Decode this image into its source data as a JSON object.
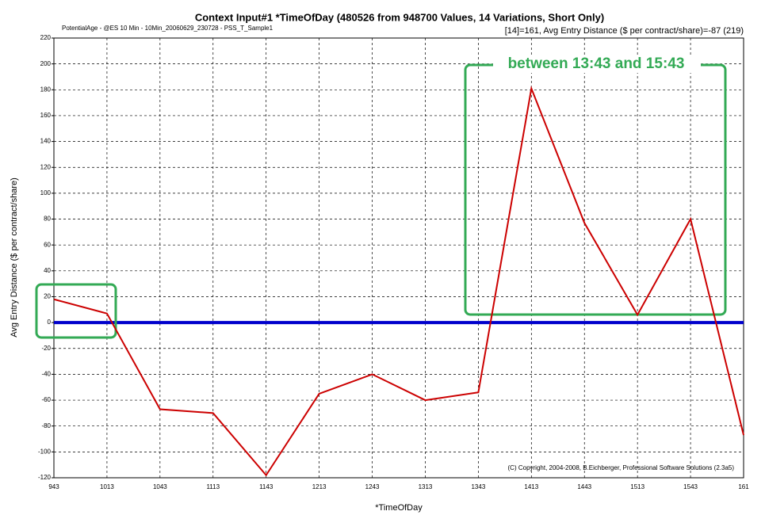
{
  "chart_data": {
    "type": "line",
    "title": "Context Input#1 *TimeOfDay (480526 from 948700 Values, 14 Variations, Short Only)",
    "subtitle": "PotentialAge - @ES 10 Min - 10Min_20060629_230728 - PSS_T_Sample1",
    "info": "[14]=161,  Avg Entry Distance  ($ per contract/share)=-87 (219)",
    "x_label": "*TimeOfDay",
    "y_label": "Avg Entry Distance  ($ per contract/share)",
    "copyright": "(C) Copyright, 2004-2008, B.Eichberger, Professional Software Solutions (2.3a5)",
    "annotation": "between 13:43 and 15:43",
    "categories": [
      "943",
      "1013",
      "1043",
      "1113",
      "1143",
      "1213",
      "1243",
      "1313",
      "1343",
      "1413",
      "1443",
      "1513",
      "1543",
      "161"
    ],
    "series": [
      {
        "name": "Avg Entry Distance",
        "color": "#cc0000",
        "values": [
          18,
          7,
          -67,
          -70,
          -118,
          -55,
          -40,
          -60,
          -54,
          181,
          77,
          6,
          80,
          -87
        ]
      }
    ],
    "reference_line": {
      "value": 0,
      "color": "#0000cc"
    },
    "ylim": [
      -120,
      220
    ],
    "yticks": [
      -120,
      -100,
      -80,
      -60,
      -40,
      -20,
      0,
      20,
      40,
      60,
      80,
      100,
      120,
      140,
      160,
      180,
      200,
      220
    ],
    "grid": true
  }
}
